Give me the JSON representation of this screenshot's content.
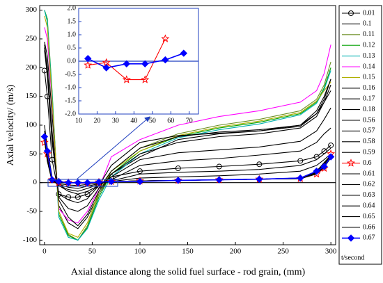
{
  "chart_data": [
    {
      "type": "line",
      "y_label": "Axial velocity/ (m/s)",
      "x_label": "Axial distance along the solid fuel surface - rod grain, (mm)",
      "legend_title": "t/second",
      "legend": "right",
      "xlim": [
        -5,
        305
      ],
      "ylim": [
        -108,
        308
      ],
      "xticks": [
        0,
        50,
        100,
        150,
        200,
        250,
        300
      ],
      "yticks": [
        -100,
        -50,
        0,
        50,
        100,
        150,
        200,
        250,
        300
      ],
      "x": [
        0,
        3,
        8,
        15,
        25,
        35,
        45,
        57,
        70,
        100,
        140,
        183,
        225,
        268,
        285,
        293,
        300
      ],
      "series": [
        {
          "name": "0.01",
          "color": "#000000",
          "marker": "circle",
          "values": [
            195,
            150,
            40,
            -20,
            -25,
            -25,
            -20,
            -5,
            10,
            20,
            25,
            28,
            32,
            38,
            45,
            55,
            65
          ]
        },
        {
          "name": "0.1",
          "color": "#000000",
          "values": [
            245,
            220,
            120,
            -40,
            -70,
            -80,
            -60,
            -20,
            15,
            45,
            75,
            85,
            90,
            100,
            120,
            145,
            180
          ]
        },
        {
          "name": "0.11",
          "color": "#6b8e23",
          "values": [
            300,
            280,
            150,
            -50,
            -90,
            -100,
            -75,
            -20,
            20,
            60,
            85,
            100,
            110,
            125,
            145,
            170,
            210
          ]
        },
        {
          "name": "0.12",
          "color": "#00a000",
          "values": [
            300,
            285,
            160,
            -55,
            -92,
            -100,
            -78,
            -25,
            15,
            55,
            80,
            95,
            105,
            120,
            140,
            165,
            200
          ]
        },
        {
          "name": "0.13",
          "color": "#00b0b0",
          "values": [
            300,
            280,
            155,
            -60,
            -95,
            -100,
            -80,
            -30,
            10,
            50,
            78,
            92,
            102,
            118,
            138,
            162,
            195
          ]
        },
        {
          "name": "0.14",
          "color": "#ff00ff",
          "values": [
            270,
            250,
            140,
            -45,
            -65,
            -70,
            -50,
            -10,
            45,
            75,
            100,
            115,
            125,
            140,
            160,
            190,
            240
          ]
        },
        {
          "name": "0.15",
          "color": "#b0b000",
          "values": [
            290,
            270,
            145,
            -50,
            -88,
            -95,
            -70,
            -15,
            20,
            55,
            82,
            97,
            107,
            122,
            142,
            160,
            175
          ]
        },
        {
          "name": "0.16",
          "color": "#000000",
          "values": [
            240,
            200,
            90,
            -30,
            -60,
            -75,
            -55,
            -15,
            15,
            50,
            70,
            80,
            85,
            95,
            115,
            140,
            170
          ]
        },
        {
          "name": "0.17",
          "color": "#000000",
          "values": [
            235,
            190,
            80,
            -25,
            -45,
            -50,
            -40,
            -10,
            20,
            60,
            80,
            88,
            92,
            100,
            125,
            150,
            180
          ]
        },
        {
          "name": "0.18",
          "color": "#000000",
          "values": [
            230,
            185,
            70,
            -20,
            -30,
            -35,
            -28,
            -5,
            30,
            70,
            82,
            86,
            90,
            98,
            120,
            140,
            160
          ]
        },
        {
          "name": "0.56",
          "color": "#000000",
          "values": [
            100,
            60,
            10,
            -5,
            -15,
            -20,
            -15,
            -5,
            10,
            40,
            52,
            57,
            62,
            72,
            90,
            110,
            130
          ]
        },
        {
          "name": "0.57",
          "color": "#000000",
          "values": [
            90,
            50,
            5,
            -5,
            -12,
            -15,
            -10,
            -3,
            5,
            30,
            38,
            42,
            48,
            55,
            70,
            85,
            95
          ]
        },
        {
          "name": "0.58",
          "color": "#000000",
          "values": [
            85,
            45,
            3,
            -3,
            -8,
            -10,
            -6,
            -2,
            3,
            15,
            18,
            20,
            23,
            30,
            40,
            50,
            60
          ]
        },
        {
          "name": "0.59",
          "color": "#000000",
          "values": [
            80,
            40,
            2,
            -2,
            -4,
            -5,
            -3,
            -1,
            2,
            8,
            10,
            12,
            15,
            20,
            30,
            40,
            50
          ]
        },
        {
          "name": "0.6",
          "color": "#ff0000",
          "marker": "star",
          "values": [
            70,
            50,
            5,
            0,
            0,
            -1,
            -1,
            1,
            2,
            3,
            4,
            5,
            6,
            7,
            15,
            25,
            50
          ]
        },
        {
          "name": "0.61",
          "color": "#000000",
          "values": [
            78,
            42,
            4,
            0,
            0,
            0,
            0,
            1,
            2,
            3,
            4,
            5,
            6,
            8,
            20,
            35,
            48
          ]
        },
        {
          "name": "0.62",
          "color": "#000000",
          "values": [
            77,
            41,
            3,
            0,
            0,
            0,
            0,
            1,
            2,
            3,
            4,
            5,
            6,
            8,
            19,
            33,
            47
          ]
        },
        {
          "name": "0.63",
          "color": "#000000",
          "values": [
            76,
            40,
            3,
            0,
            0,
            0,
            0,
            1,
            2,
            3,
            4,
            5,
            6,
            8,
            18,
            31,
            46
          ]
        },
        {
          "name": "0.64",
          "color": "#000000",
          "values": [
            75,
            39,
            3,
            0,
            0,
            0,
            0,
            1,
            2,
            3,
            4,
            5,
            6,
            7,
            17,
            30,
            45
          ]
        },
        {
          "name": "0.65",
          "color": "#000000",
          "values": [
            74,
            38,
            3,
            0,
            0,
            0,
            0,
            1,
            2,
            3,
            4,
            5,
            6,
            7,
            16,
            28,
            44
          ]
        },
        {
          "name": "0.66",
          "color": "#000000",
          "values": [
            73,
            37,
            2,
            0,
            0,
            0,
            0,
            1,
            2,
            3,
            4,
            5,
            6,
            7,
            15,
            27,
            43
          ]
        },
        {
          "name": "0.67",
          "color": "#0000ff",
          "marker": "diamond",
          "values": [
            80,
            55,
            5,
            2,
            -0.2,
            -0.1,
            -0.1,
            1,
            2,
            2,
            4,
            5,
            6,
            8,
            20,
            28,
            45
          ]
        }
      ]
    },
    {
      "type": "line",
      "xlim": [
        10,
        75
      ],
      "ylim": [
        -2,
        2
      ],
      "xticks": [
        10,
        20,
        30,
        40,
        50,
        60,
        70
      ],
      "yticks": [
        {
          "value": -2,
          "label": "-2.0"
        },
        -1.5,
        {
          "value": -1,
          "label": "-1.0"
        },
        -0.5,
        {
          "value": 0,
          "label": "0.0"
        },
        0.5,
        {
          "value": 1,
          "label": "1.0"
        },
        1.5,
        {
          "value": 2,
          "label": "2.0"
        }
      ],
      "x": [
        15,
        25,
        36,
        46,
        57,
        67
      ],
      "series": [
        {
          "color": "#ff0000",
          "marker": "star",
          "values": [
            -0.15,
            -0.05,
            -0.7,
            -0.7,
            0.85,
            null
          ]
        },
        {
          "color": "#0000ff",
          "marker": "diamond",
          "values": [
            0.1,
            -0.25,
            -0.1,
            -0.1,
            0.05,
            0.3
          ]
        }
      ]
    }
  ]
}
